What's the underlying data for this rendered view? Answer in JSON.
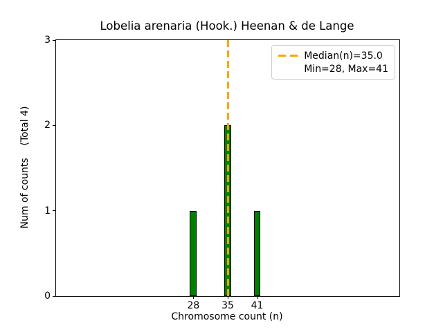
{
  "chart_data": {
    "type": "bar",
    "title": "Lobelia arenaria (Hook.) Heenan & de Lange",
    "xlabel": "Chromosome count (n)",
    "ylabel": "Num of counts    (Total 4)",
    "categories": [
      28,
      35,
      41
    ],
    "values": [
      1,
      2,
      1
    ],
    "total_counts": 4,
    "bar_width_units": 1.4,
    "xlim": [
      0,
      70
    ],
    "ylim": [
      0,
      3
    ],
    "x_tick_values": [
      28,
      35,
      41
    ],
    "x_tick_labels": [
      "28",
      "35",
      "41"
    ],
    "y_tick_values": [
      0,
      1,
      2,
      3
    ],
    "y_tick_labels": [
      "0",
      "1",
      "2",
      "3"
    ],
    "median": 35.0,
    "min": 28,
    "max": 41,
    "grid": false,
    "colors": {
      "bar_fill": "#008000",
      "bar_edge": "#000000",
      "median_line": "#ffa500",
      "spine": "#000000",
      "text": "#000000",
      "legend_border": "#cccccc"
    },
    "legend": {
      "position": "upper right",
      "entries": [
        {
          "label": "Median(n)=35.0",
          "symbol": "orange-dashed-line"
        },
        {
          "label": "Min=28, Max=41",
          "symbol": "none"
        }
      ]
    }
  }
}
